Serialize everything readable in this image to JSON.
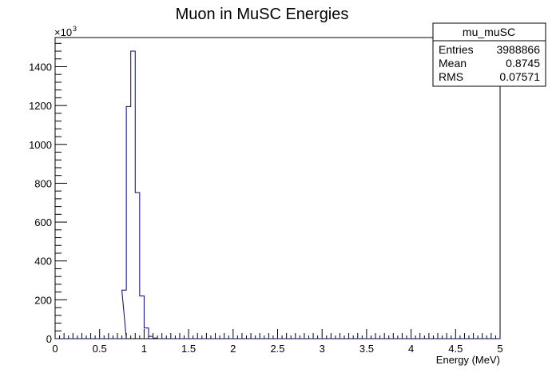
{
  "chart_data": {
    "type": "histogram",
    "title": "Muon in MuSC Energies",
    "xlabel": "Energy (MeV)",
    "ylabel": "",
    "xlim": [
      0,
      5
    ],
    "ylim": [
      0,
      1550
    ],
    "y_multiplier_label": "×10",
    "y_multiplier_exponent": "3",
    "x_ticks": [
      0,
      0.5,
      1,
      1.5,
      2,
      2.5,
      3,
      3.5,
      4,
      4.5,
      5
    ],
    "x_tick_labels": [
      "0",
      "0.5",
      "1",
      "1.5",
      "2",
      "2.5",
      "3",
      "3.5",
      "4",
      "4.5",
      "5"
    ],
    "y_ticks": [
      0,
      200,
      400,
      600,
      800,
      1000,
      1200,
      1400
    ],
    "y_tick_labels": [
      "0",
      "200",
      "400",
      "600",
      "800",
      "1000",
      "1200",
      "1400"
    ],
    "bin_width": 0.05,
    "bins": [
      {
        "x": 0.75,
        "y": 0
      },
      {
        "x": 0.75,
        "y": 250
      },
      {
        "x": 0.8,
        "y": 1195
      },
      {
        "x": 0.85,
        "y": 1480
      },
      {
        "x": 0.9,
        "y": 752
      },
      {
        "x": 0.95,
        "y": 220
      },
      {
        "x": 1.0,
        "y": 55
      },
      {
        "x": 1.05,
        "y": 12
      },
      {
        "x": 1.1,
        "y": 3
      },
      {
        "x": 1.15,
        "y": 0
      }
    ],
    "line_color": "#000099",
    "grid": false
  },
  "stats_box": {
    "name": "mu_muSC",
    "rows": [
      {
        "label": "Entries",
        "value": "3988866"
      },
      {
        "label": "Mean",
        "value": "0.8745"
      },
      {
        "label": "RMS",
        "value": "0.07571"
      }
    ]
  }
}
